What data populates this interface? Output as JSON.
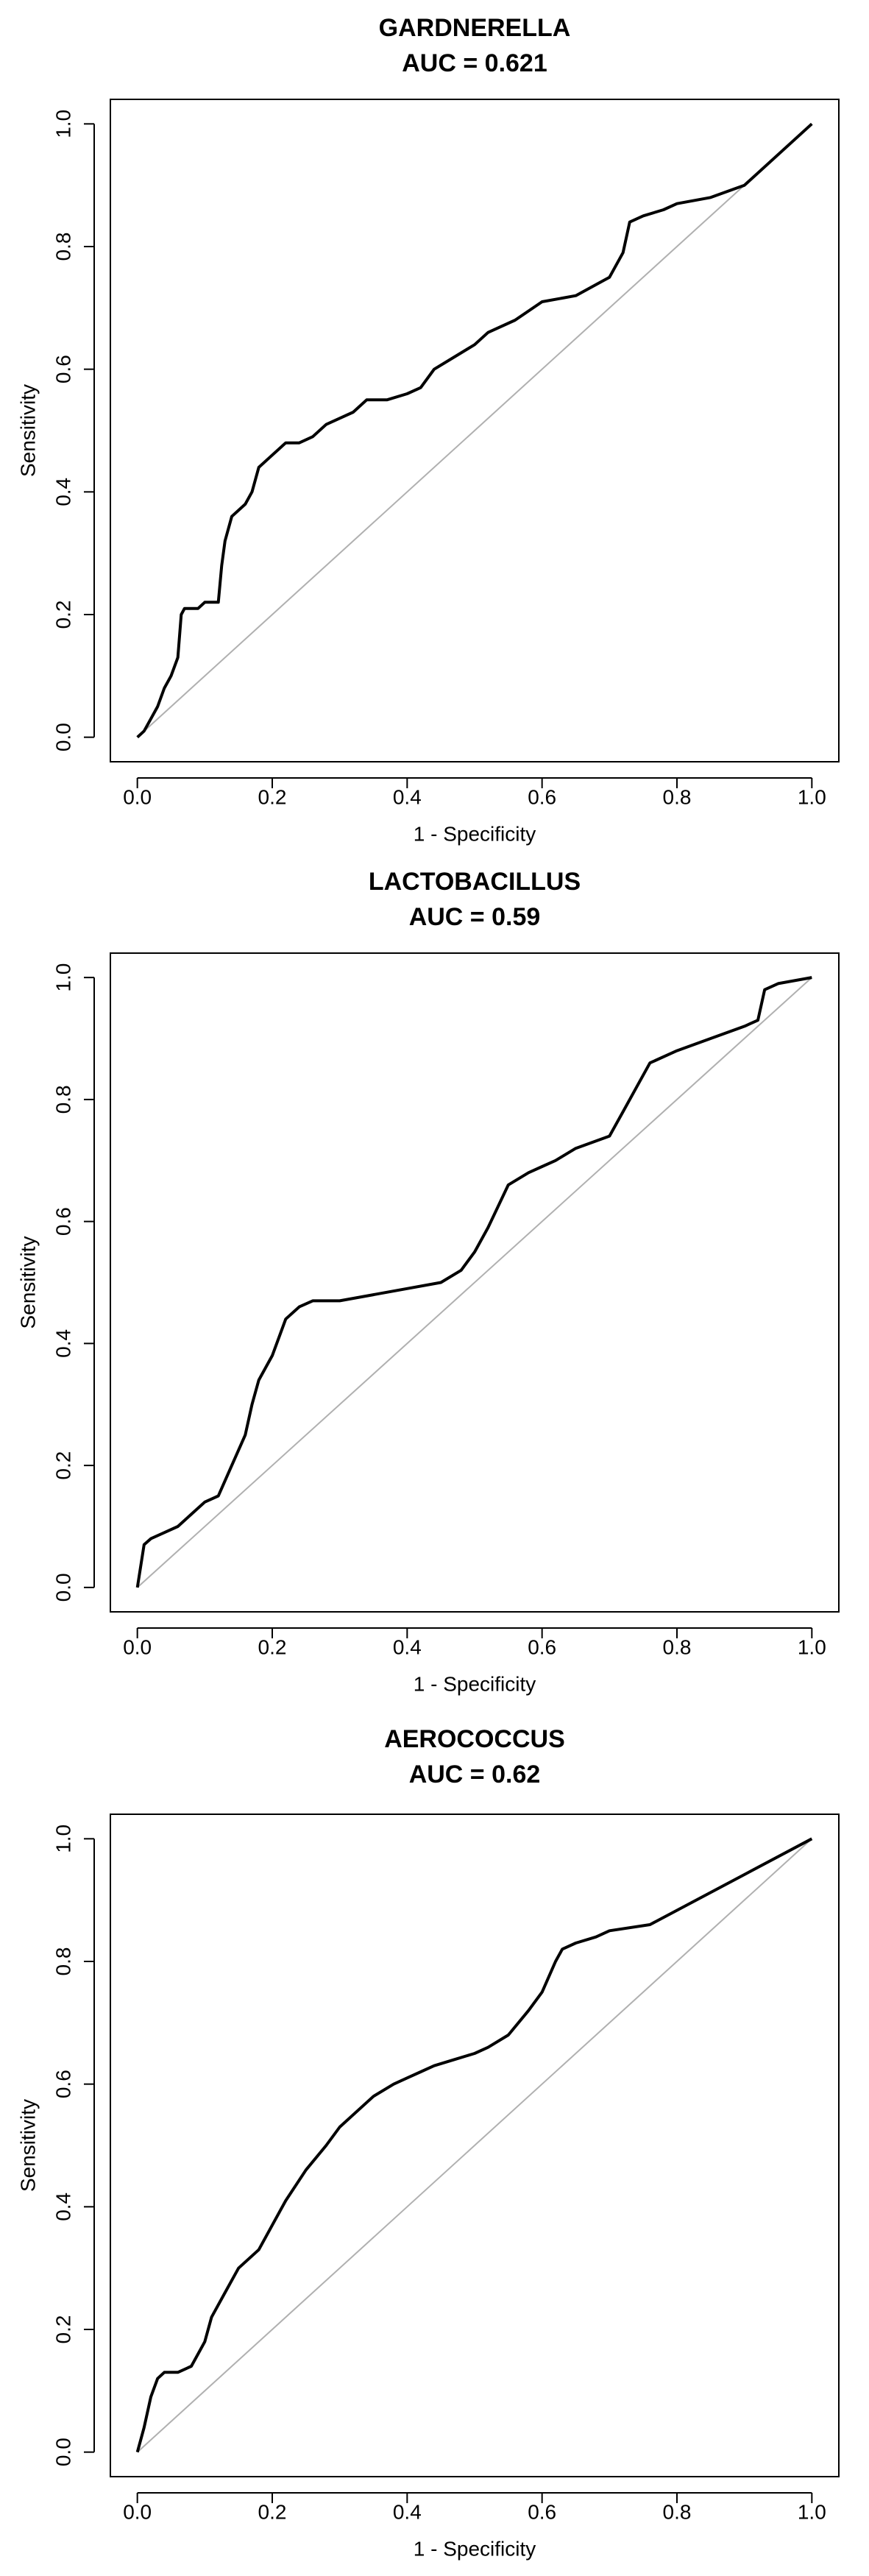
{
  "chart_data": [
    {
      "type": "line",
      "title": "GARDNERELLA",
      "subtitle": "AUC = 0.621",
      "xlabel": "1 - Specificity",
      "ylabel": "Sensitivity",
      "xlim": [
        0,
        1
      ],
      "ylim": [
        0,
        1
      ],
      "xticks": [
        "0.0",
        "0.2",
        "0.4",
        "0.6",
        "0.8",
        "1.0"
      ],
      "yticks": [
        "0.0",
        "0.2",
        "0.4",
        "0.6",
        "0.8",
        "1.0"
      ],
      "grid": false,
      "legend": "none",
      "series": [
        {
          "color": "#000000",
          "x": [
            0.0,
            0.01,
            0.02,
            0.03,
            0.04,
            0.05,
            0.06,
            0.065,
            0.07,
            0.09,
            0.1,
            0.11,
            0.12,
            0.125,
            0.13,
            0.14,
            0.16,
            0.17,
            0.18,
            0.19,
            0.2,
            0.22,
            0.24,
            0.26,
            0.28,
            0.3,
            0.32,
            0.34,
            0.37,
            0.4,
            0.42,
            0.44,
            0.47,
            0.5,
            0.52,
            0.56,
            0.6,
            0.65,
            0.7,
            0.72,
            0.73,
            0.75,
            0.78,
            0.8,
            0.85,
            0.9,
            1.0
          ],
          "y": [
            0.0,
            0.01,
            0.03,
            0.05,
            0.08,
            0.1,
            0.13,
            0.2,
            0.21,
            0.21,
            0.22,
            0.22,
            0.22,
            0.28,
            0.32,
            0.36,
            0.38,
            0.4,
            0.44,
            0.45,
            0.46,
            0.48,
            0.48,
            0.49,
            0.51,
            0.52,
            0.53,
            0.55,
            0.55,
            0.56,
            0.57,
            0.6,
            0.62,
            0.64,
            0.66,
            0.68,
            0.71,
            0.72,
            0.75,
            0.79,
            0.84,
            0.85,
            0.86,
            0.87,
            0.88,
            0.9,
            1.0
          ]
        },
        {
          "color": "#b0b0b0",
          "x": [
            0,
            1
          ],
          "y": [
            0,
            1
          ]
        }
      ]
    },
    {
      "type": "line",
      "title": "LACTOBACILLUS",
      "subtitle": "AUC = 0.59",
      "xlabel": "1 - Specificity",
      "ylabel": "Sensitivity",
      "xlim": [
        0,
        1
      ],
      "ylim": [
        0,
        1
      ],
      "xticks": [
        "0.0",
        "0.2",
        "0.4",
        "0.6",
        "0.8",
        "1.0"
      ],
      "yticks": [
        "0.0",
        "0.2",
        "0.4",
        "0.6",
        "0.8",
        "1.0"
      ],
      "grid": false,
      "legend": "none",
      "series": [
        {
          "color": "#000000",
          "x": [
            0.0,
            0.01,
            0.02,
            0.04,
            0.06,
            0.08,
            0.1,
            0.12,
            0.14,
            0.16,
            0.17,
            0.18,
            0.2,
            0.22,
            0.24,
            0.26,
            0.3,
            0.35,
            0.4,
            0.45,
            0.48,
            0.5,
            0.52,
            0.55,
            0.58,
            0.6,
            0.62,
            0.65,
            0.7,
            0.72,
            0.74,
            0.76,
            0.8,
            0.85,
            0.9,
            0.92,
            0.93,
            0.95,
            1.0
          ],
          "y": [
            0.0,
            0.07,
            0.08,
            0.09,
            0.1,
            0.12,
            0.14,
            0.15,
            0.2,
            0.25,
            0.3,
            0.34,
            0.38,
            0.44,
            0.46,
            0.47,
            0.47,
            0.48,
            0.49,
            0.5,
            0.52,
            0.55,
            0.59,
            0.66,
            0.68,
            0.69,
            0.7,
            0.72,
            0.74,
            0.78,
            0.82,
            0.86,
            0.88,
            0.9,
            0.92,
            0.93,
            0.98,
            0.99,
            1.0
          ]
        },
        {
          "color": "#b0b0b0",
          "x": [
            0,
            1
          ],
          "y": [
            0,
            1
          ]
        }
      ]
    },
    {
      "type": "line",
      "title": "AEROCOCCUS",
      "subtitle": "AUC = 0.62",
      "xlabel": "1 - Specificity",
      "ylabel": "Sensitivity",
      "xlim": [
        0,
        1
      ],
      "ylim": [
        0,
        1
      ],
      "xticks": [
        "0.0",
        "0.2",
        "0.4",
        "0.6",
        "0.8",
        "1.0"
      ],
      "yticks": [
        "0.0",
        "0.2",
        "0.4",
        "0.6",
        "0.8",
        "1.0"
      ],
      "grid": false,
      "legend": "none",
      "series": [
        {
          "color": "#000000",
          "x": [
            0.0,
            0.01,
            0.02,
            0.03,
            0.04,
            0.06,
            0.08,
            0.1,
            0.11,
            0.13,
            0.15,
            0.18,
            0.2,
            0.22,
            0.25,
            0.28,
            0.3,
            0.32,
            0.35,
            0.38,
            0.4,
            0.42,
            0.44,
            0.47,
            0.5,
            0.52,
            0.55,
            0.58,
            0.6,
            0.62,
            0.63,
            0.65,
            0.68,
            0.7,
            0.76,
            1.0
          ],
          "y": [
            0.0,
            0.04,
            0.09,
            0.12,
            0.13,
            0.13,
            0.14,
            0.18,
            0.22,
            0.26,
            0.3,
            0.33,
            0.37,
            0.41,
            0.46,
            0.5,
            0.53,
            0.55,
            0.58,
            0.6,
            0.61,
            0.62,
            0.63,
            0.64,
            0.65,
            0.66,
            0.68,
            0.72,
            0.75,
            0.8,
            0.82,
            0.83,
            0.84,
            0.85,
            0.86,
            1.0
          ]
        },
        {
          "color": "#b0b0b0",
          "x": [
            0,
            1
          ],
          "y": [
            0,
            1
          ]
        }
      ]
    }
  ]
}
